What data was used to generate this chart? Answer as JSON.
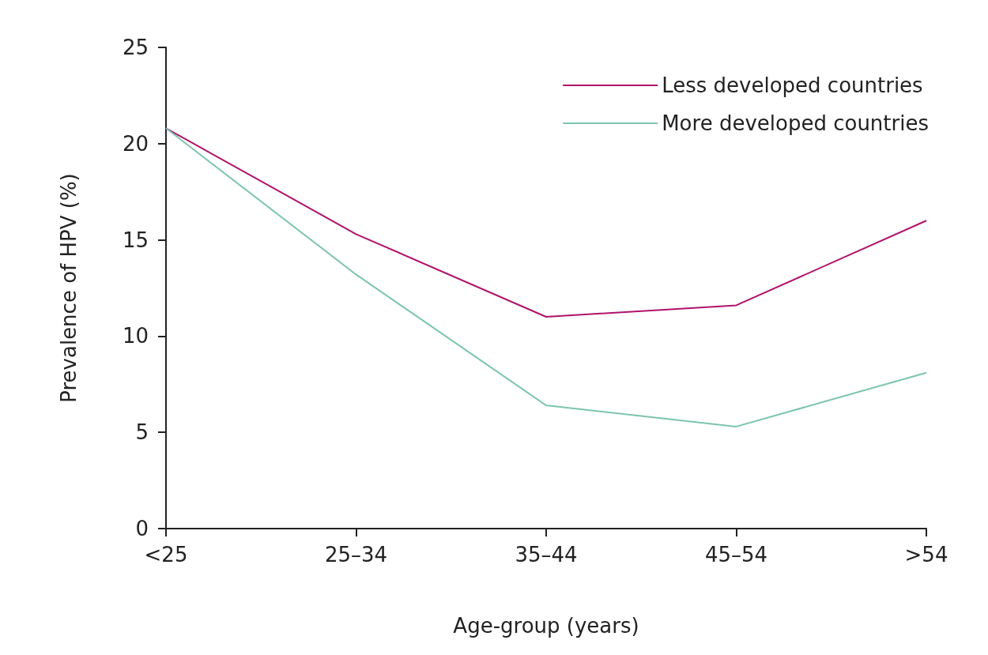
{
  "chart_data": {
    "type": "line",
    "xlabel": "Age-group (years)",
    "ylabel": "Prevalence of HPV (%)",
    "categories": [
      "<25",
      "25–34",
      "35–44",
      "45–54",
      ">54"
    ],
    "series": [
      {
        "name": "Less developed countries",
        "color": "#b0126a",
        "values": [
          20.8,
          15.3,
          11.0,
          11.6,
          16.0
        ]
      },
      {
        "name": "More developed countries",
        "color": "#7cc4ae",
        "values": [
          20.8,
          13.2,
          6.4,
          5.3,
          8.1
        ]
      }
    ],
    "ylim": [
      0,
      25
    ],
    "yticks": [
      0,
      5,
      10,
      15,
      20,
      25
    ],
    "grid": false,
    "legend": "top right",
    "marker": "none",
    "line_style": "solid"
  }
}
